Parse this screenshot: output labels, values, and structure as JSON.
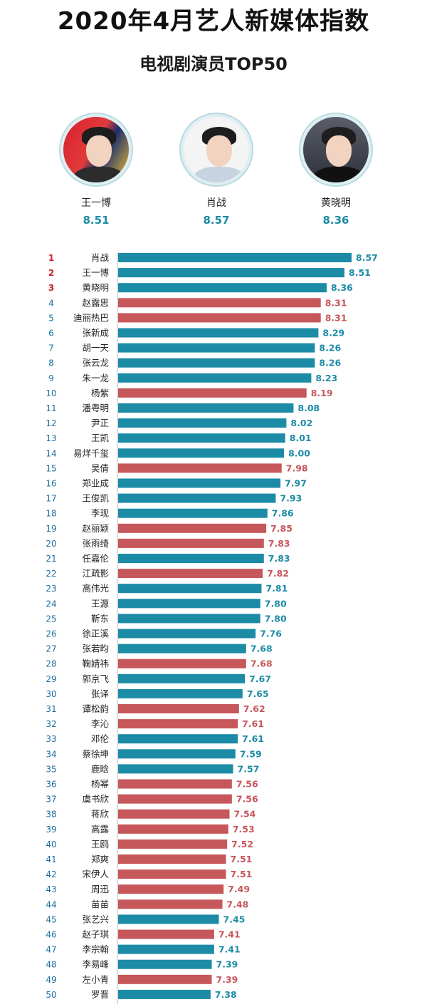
{
  "header": {
    "title": "2020年4月艺人新媒体指数",
    "subtitle": "电视剧演员TOP50"
  },
  "podium": [
    {
      "name": "王一博",
      "score": "8.51"
    },
    {
      "name": "肖战",
      "score": "8.57"
    },
    {
      "name": "黄晓明",
      "score": "8.36"
    }
  ],
  "colors": {
    "male": "#1c8ba6",
    "female": "#c6575b",
    "rank_top3": "#c8232c",
    "rank_other": "#1c6fa0"
  },
  "chart_data": {
    "type": "bar",
    "orientation": "horizontal",
    "title": "电视剧演员TOP50",
    "xlim": [
      0,
      8.57
    ],
    "grid": false,
    "ranks": [
      1,
      2,
      3,
      4,
      5,
      6,
      7,
      8,
      9,
      10,
      11,
      12,
      13,
      14,
      15,
      16,
      17,
      18,
      19,
      20,
      21,
      22,
      23,
      24,
      25,
      26,
      27,
      28,
      29,
      30,
      31,
      32,
      33,
      34,
      35,
      36,
      37,
      38,
      39,
      40,
      41,
      42,
      43,
      44,
      45,
      46,
      47,
      48,
      49,
      50
    ],
    "categories": [
      "肖战",
      "王一博",
      "黄晓明",
      "赵露思",
      "迪丽热巴",
      "张新成",
      "胡一天",
      "张云龙",
      "朱一龙",
      "杨紫",
      "潘粤明",
      "尹正",
      "王凯",
      "易烊千玺",
      "吴倩",
      "郑业成",
      "王俊凯",
      "李现",
      "赵丽颖",
      "张雨绮",
      "任嘉伦",
      "江疏影",
      "高伟光",
      "王源",
      "靳东",
      "徐正溪",
      "张若昀",
      "鞠婧祎",
      "郭京飞",
      "张译",
      "谭松韵",
      "李沁",
      "邓伦",
      "蔡徐坤",
      "鹿晗",
      "杨幂",
      "虞书欣",
      "蒋欣",
      "高露",
      "王鸥",
      "郑爽",
      "宋伊人",
      "周迅",
      "苗苗",
      "张艺兴",
      "赵子琪",
      "李宗翰",
      "李易峰",
      "左小青",
      "罗晋"
    ],
    "values": [
      8.57,
      8.51,
      8.36,
      8.31,
      8.31,
      8.29,
      8.26,
      8.26,
      8.23,
      8.19,
      8.08,
      8.02,
      8.01,
      8.0,
      7.98,
      7.97,
      7.93,
      7.86,
      7.85,
      7.83,
      7.83,
      7.82,
      7.81,
      7.8,
      7.8,
      7.76,
      7.68,
      7.68,
      7.67,
      7.65,
      7.62,
      7.61,
      7.61,
      7.59,
      7.57,
      7.56,
      7.56,
      7.54,
      7.53,
      7.52,
      7.51,
      7.51,
      7.49,
      7.48,
      7.45,
      7.41,
      7.41,
      7.39,
      7.39,
      7.38
    ],
    "value_labels": [
      "8.57",
      "8.51",
      "8.36",
      "8.31",
      "8.31",
      "8.29",
      "8.26",
      "8.26",
      "8.23",
      "8.19",
      "8.08",
      "8.02",
      "8.01",
      "8.00",
      "7.98",
      "7.97",
      "7.93",
      "7.86",
      "7.85",
      "7.83",
      "7.83",
      "7.82",
      "7.81",
      "7.80",
      "7.80",
      "7.76",
      "7.68",
      "7.68",
      "7.67",
      "7.65",
      "7.62",
      "7.61",
      "7.61",
      "7.59",
      "7.57",
      "7.56",
      "7.56",
      "7.54",
      "7.53",
      "7.52",
      "7.51",
      "7.51",
      "7.49",
      "7.48",
      "7.45",
      "7.41",
      "7.41",
      "7.39",
      "7.39",
      "7.38"
    ],
    "gender": [
      "m",
      "m",
      "m",
      "f",
      "f",
      "m",
      "m",
      "m",
      "m",
      "f",
      "m",
      "m",
      "m",
      "m",
      "f",
      "m",
      "m",
      "m",
      "f",
      "f",
      "m",
      "f",
      "m",
      "m",
      "m",
      "m",
      "m",
      "f",
      "m",
      "m",
      "f",
      "f",
      "m",
      "m",
      "m",
      "f",
      "f",
      "f",
      "f",
      "f",
      "f",
      "f",
      "f",
      "f",
      "m",
      "f",
      "m",
      "m",
      "f",
      "m"
    ]
  }
}
